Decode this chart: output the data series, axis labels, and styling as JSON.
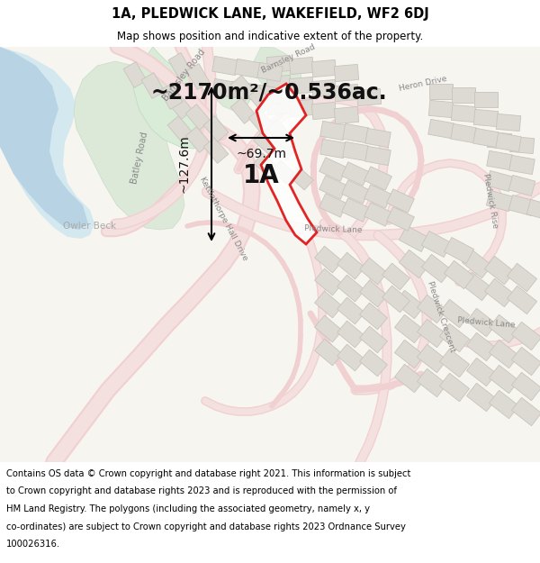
{
  "title_line1": "1A, PLEDWICK LANE, WAKEFIELD, WF2 6DJ",
  "title_line2": "Map shows position and indicative extent of the property.",
  "area_text": "~2170m²/~0.536ac.",
  "label_text": "1A",
  "dim1_text": "~127.6m",
  "dim2_text": "~69.7m",
  "footer_text": "Contains OS data © Crown copyright and database right 2021. This information is subject to Crown copyright and database rights 2023 and is reproduced with the permission of HM Land Registry. The polygons (including the associated geometry, namely x, y co-ordinates) are subject to Crown copyright and database rights 2023 Ordnance Survey 100026316.",
  "map_bg": "#f7f5f0",
  "title_bg": "#ffffff",
  "footer_bg": "#ffffff",
  "road_color": "#f0d0d0",
  "road_edge": "#e0b0b0",
  "highlight_color": "#dd0000",
  "building_fill": "#dddad4",
  "building_edge": "#c8c4bc",
  "water_color": "#c8dce8",
  "green_color": "#dce8d8",
  "green_color2": "#cce0cc"
}
